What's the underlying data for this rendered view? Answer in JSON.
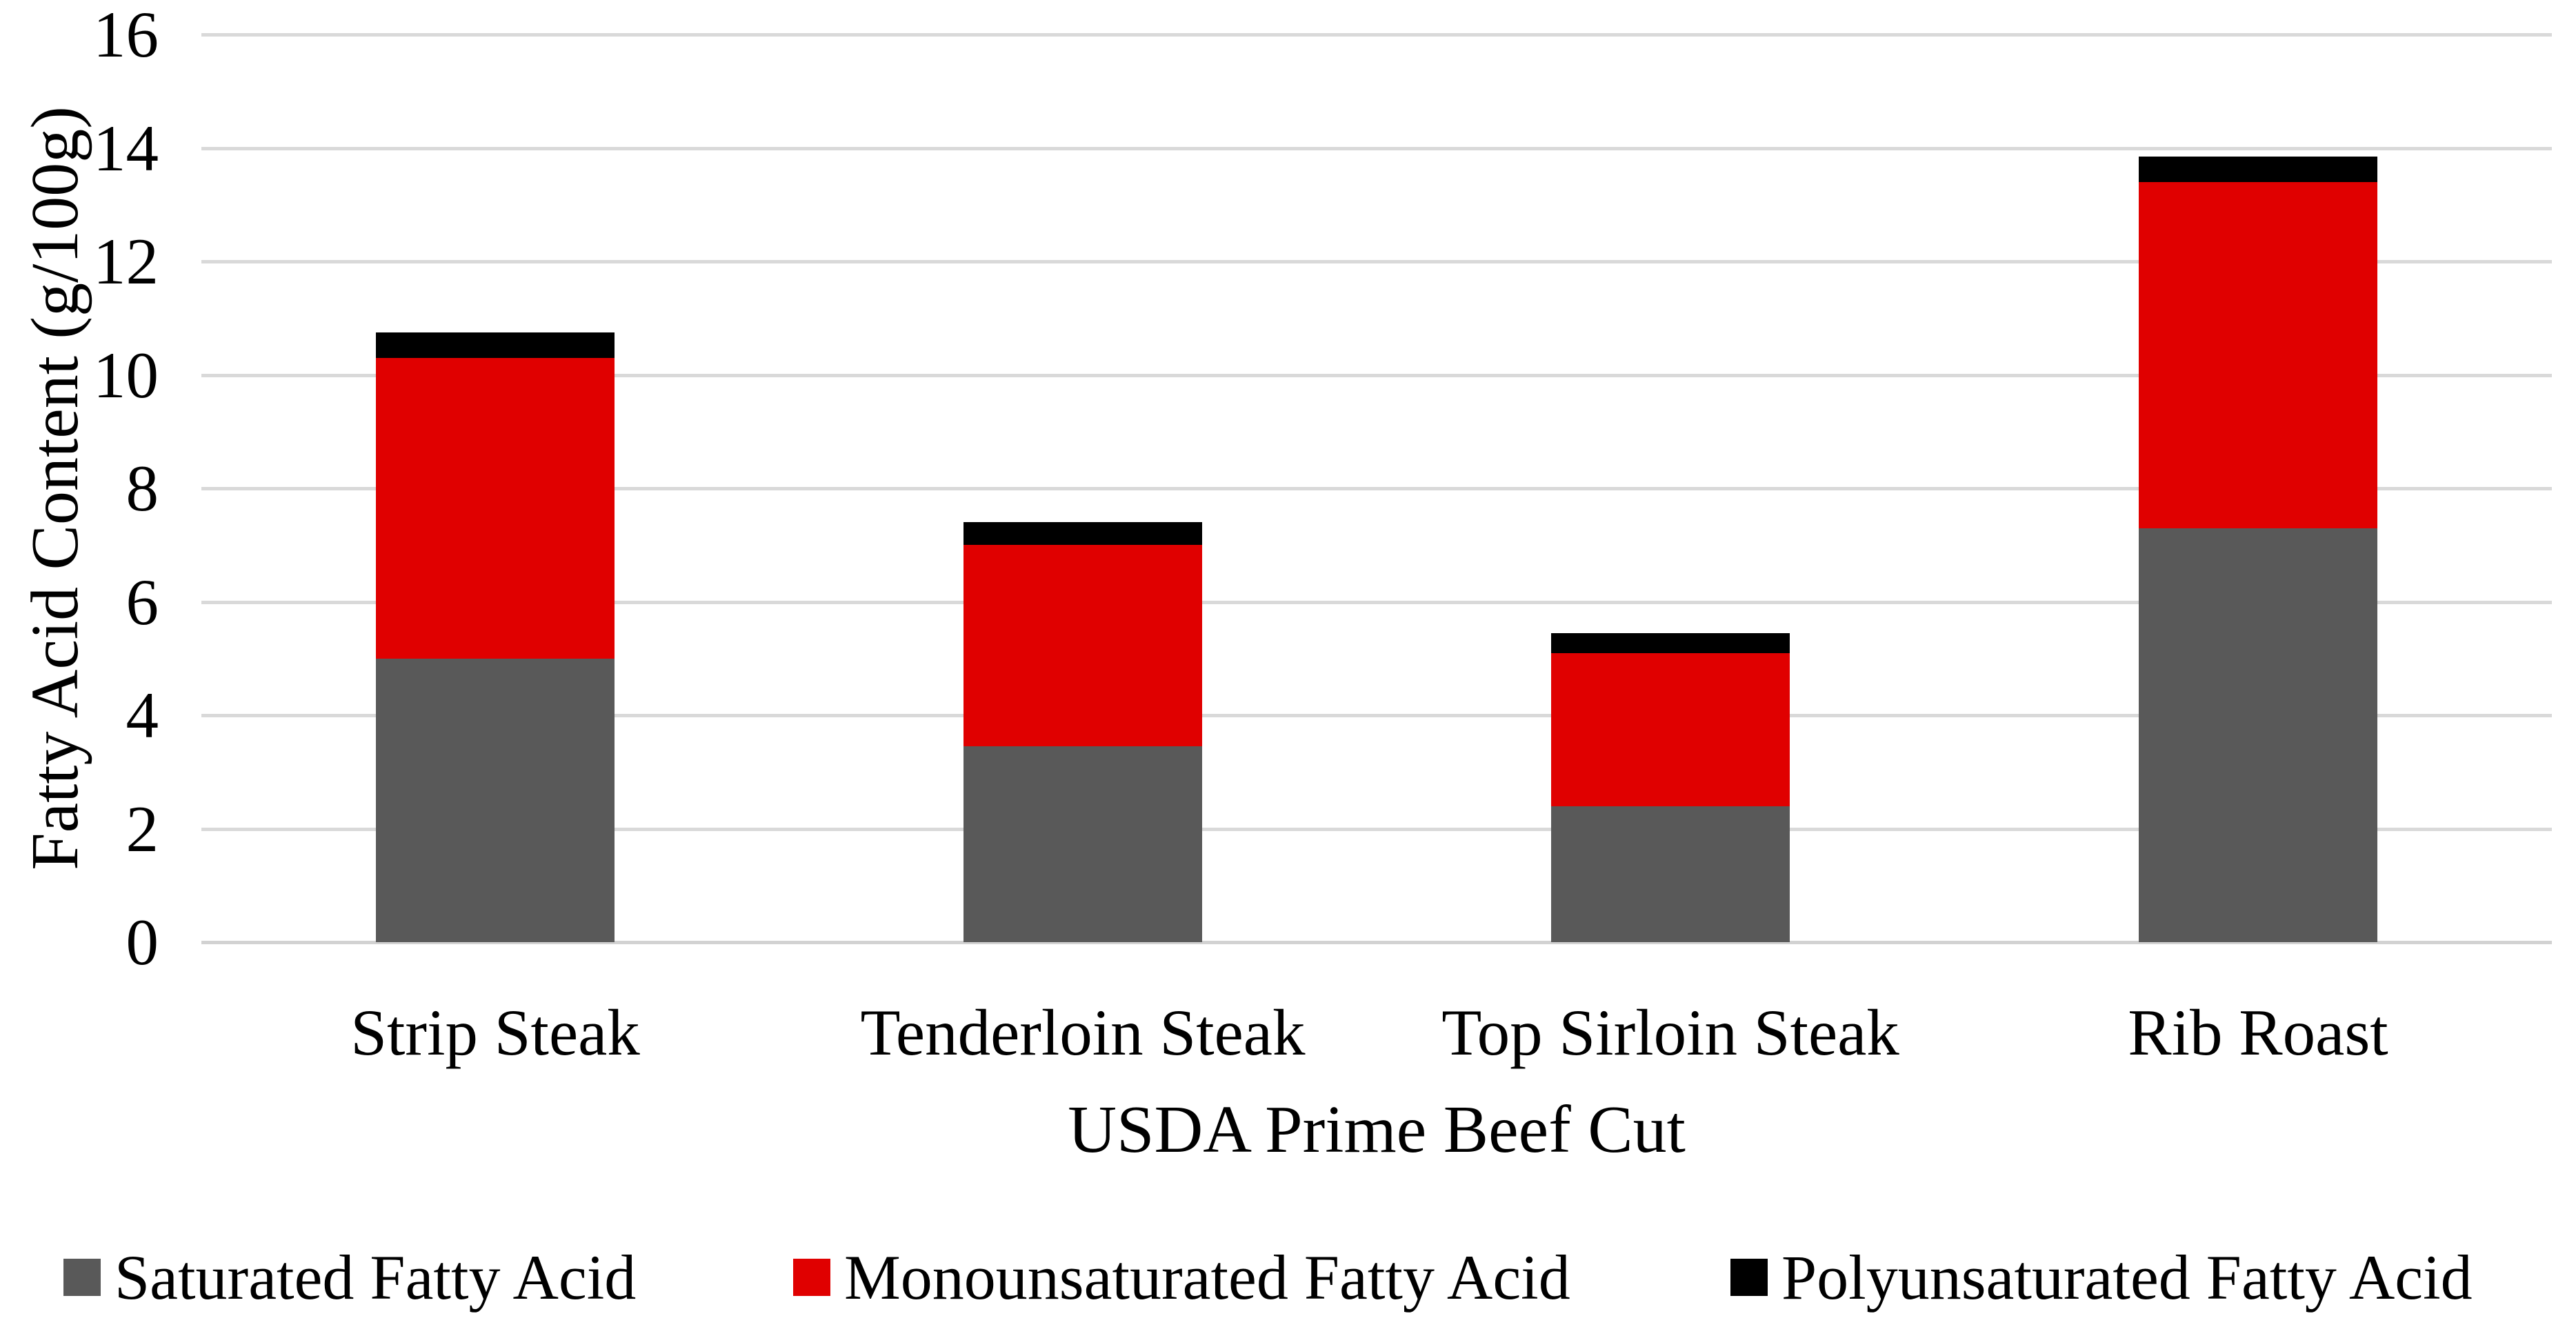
{
  "figure": {
    "background": "#FFFFFF",
    "text_color": "#000000"
  },
  "chart_data": {
    "type": "bar",
    "stacked": true,
    "orientation": "vertical",
    "title": "",
    "xlabel": "USDA Prime Beef Cut",
    "ylabel": "Fatty Acid Content (g/100g)",
    "categories": [
      "Strip Steak",
      "Tenderloin Steak",
      "Top Sirloin Steak",
      "Rib Roast"
    ],
    "series": [
      {
        "name": "Saturated Fatty Acid",
        "color": "#595959",
        "values": [
          5.0,
          3.45,
          2.4,
          7.3
        ]
      },
      {
        "name": "Monounsaturated Fatty Acid",
        "color": "#E00000",
        "values": [
          5.3,
          3.55,
          2.7,
          6.1
        ]
      },
      {
        "name": "Polyunsaturated Fatty Acid",
        "color": "#000000",
        "values": [
          0.45,
          0.4,
          0.35,
          0.45
        ]
      }
    ],
    "stack_totals": [
      10.75,
      7.4,
      5.45,
      13.85
    ],
    "y_axis": {
      "min": 0,
      "max": 16,
      "step": 2,
      "tick_labels": [
        "0",
        "2",
        "4",
        "6",
        "8",
        "10",
        "12",
        "14",
        "16"
      ]
    },
    "grid": true,
    "gridline_color": "#D9D9D9",
    "legend_position": "bottom",
    "legend_entries": [
      "Saturated Fatty Acid",
      "Monounsaturated Fatty Acid",
      "Polyunsaturated Fatty Acid"
    ]
  }
}
